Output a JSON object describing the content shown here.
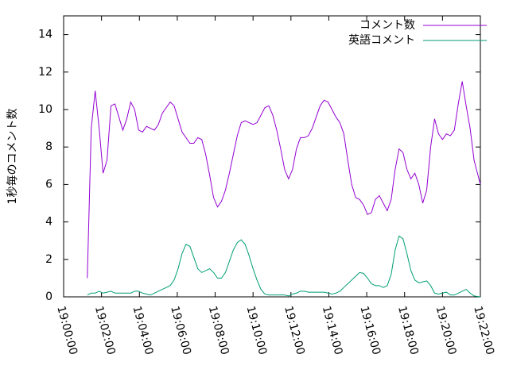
{
  "chart_data": {
    "type": "line",
    "ylabel": "1秒毎のコメント数",
    "x": [
      75,
      87.5,
      100,
      112.5,
      125,
      137.5,
      150,
      162.5,
      175,
      187.5,
      200,
      212.5,
      225,
      237.5,
      250,
      262.5,
      275,
      287.5,
      300,
      312.5,
      325,
      337.5,
      350,
      362.5,
      375,
      387.5,
      400,
      412.5,
      425,
      437.5,
      450,
      462.5,
      475,
      487.5,
      500,
      512.5,
      525,
      537.5,
      550,
      562.5,
      575,
      587.5,
      600,
      612.5,
      625,
      637.5,
      650,
      662.5,
      675,
      687.5,
      700,
      712.5,
      725,
      737.5,
      750,
      762.5,
      775,
      787.5,
      800,
      812.5,
      825,
      837.5,
      850,
      862.5,
      875,
      887.5,
      900,
      912.5,
      925,
      937.5,
      950,
      962.5,
      975,
      987.5,
      1000,
      1012.5,
      1025,
      1037.5,
      1050,
      1062.5,
      1075,
      1087.5,
      1100,
      1112.5,
      1125,
      1137.5,
      1150,
      1162.5,
      1175,
      1187.5,
      1200,
      1212.5,
      1225,
      1237.5,
      1250,
      1262.5,
      1275,
      1287.5,
      1300,
      1320
    ],
    "series": [
      {
        "name": "コメント数",
        "color": "#9400d3",
        "values": [
          1,
          9,
          11,
          9,
          6.6,
          7.3,
          10.2,
          10.3,
          9.6,
          8.9,
          9.5,
          10.4,
          10,
          8.9,
          8.8,
          9.1,
          9.0,
          8.9,
          9.2,
          9.8,
          10.1,
          10.4,
          10.2,
          9.5,
          8.8,
          8.5,
          8.2,
          8.2,
          8.5,
          8.4,
          7.6,
          6.5,
          5.3,
          4.8,
          5.1,
          5.7,
          6.6,
          7.6,
          8.6,
          9.3,
          9.4,
          9.3,
          9.2,
          9.3,
          9.7,
          10.1,
          10.2,
          9.7,
          8.9,
          7.9,
          6.8,
          6.3,
          6.8,
          7.9,
          8.5,
          8.5,
          8.6,
          9.0,
          9.6,
          10.2,
          10.5,
          10.4,
          10.0,
          9.6,
          9.3,
          8.7,
          7.3,
          6.0,
          5.3,
          5.2,
          4.9,
          4.4,
          4.5,
          5.2,
          5.4,
          5.0,
          4.6,
          5.2,
          6.8,
          7.9,
          7.7,
          6.8,
          6.3,
          6.6,
          6.0,
          5.0,
          5.7,
          8.0,
          9.5,
          8.7,
          8.4,
          8.7,
          8.6,
          8.9,
          10.3,
          11.5,
          10.2,
          9.0,
          7.3,
          6.0
        ]
      },
      {
        "name": "英語コメント",
        "color": "#009e73",
        "values": [
          0.1,
          0.2,
          0.2,
          0.3,
          0.2,
          0.25,
          0.3,
          0.2,
          0.2,
          0.2,
          0.2,
          0.2,
          0.3,
          0.3,
          0.2,
          0.15,
          0.1,
          0.2,
          0.3,
          0.4,
          0.5,
          0.6,
          0.9,
          1.5,
          2.3,
          2.8,
          2.7,
          2.1,
          1.5,
          1.3,
          1.4,
          1.5,
          1.3,
          1.0,
          1.0,
          1.3,
          1.9,
          2.5,
          2.9,
          3.05,
          2.8,
          2.2,
          1.5,
          0.9,
          0.4,
          0.15,
          0.1,
          0.1,
          0.1,
          0.1,
          0.1,
          0.05,
          0.15,
          0.2,
          0.3,
          0.3,
          0.25,
          0.25,
          0.25,
          0.25,
          0.25,
          0.2,
          0.15,
          0.2,
          0.3,
          0.5,
          0.7,
          0.9,
          1.1,
          1.3,
          1.25,
          1.0,
          0.7,
          0.6,
          0.6,
          0.5,
          0.6,
          1.2,
          2.5,
          3.25,
          3.1,
          2.3,
          1.4,
          0.9,
          0.75,
          0.8,
          0.85,
          0.6,
          0.2,
          0.15,
          0.2,
          0.25,
          0.1,
          0.1,
          0.2,
          0.3,
          0.4,
          0.2,
          0.05,
          0.0
        ]
      }
    ],
    "xlim": [
      0,
      1320
    ],
    "xticks": [
      {
        "value": 0,
        "label": "19:00:00"
      },
      {
        "value": 120,
        "label": "19:02:00"
      },
      {
        "value": 240,
        "label": "19:04:00"
      },
      {
        "value": 360,
        "label": "19:06:00"
      },
      {
        "value": 480,
        "label": "19:08:00"
      },
      {
        "value": 600,
        "label": "19:10:00"
      },
      {
        "value": 720,
        "label": "19:12:00"
      },
      {
        "value": 840,
        "label": "19:14:00"
      },
      {
        "value": 960,
        "label": "19:16:00"
      },
      {
        "value": 1080,
        "label": "19:18:00"
      },
      {
        "value": 1200,
        "label": "19:20:00"
      },
      {
        "value": 1320,
        "label": "19:22:00"
      }
    ],
    "ylim": [
      0,
      15
    ],
    "yticks": [
      0,
      2,
      4,
      6,
      8,
      10,
      12,
      14
    ],
    "legend": "top-right",
    "grid": false
  }
}
